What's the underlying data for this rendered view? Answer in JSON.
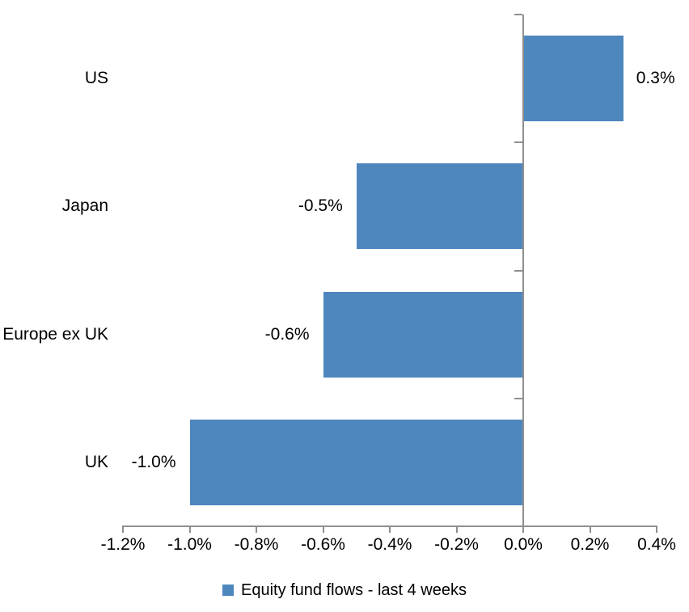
{
  "chart_data": {
    "type": "bar",
    "orientation": "horizontal",
    "title": "",
    "xlabel": "",
    "ylabel": "",
    "categories": [
      "US",
      "Japan",
      "Europe ex UK",
      "UK"
    ],
    "values": [
      0.3,
      -0.5,
      -0.6,
      -1.0
    ],
    "data_labels": [
      "0.3%",
      "-0.5%",
      "-0.6%",
      "-1.0%"
    ],
    "xlim": [
      -1.2,
      0.4
    ],
    "x_ticks": [
      -1.2,
      -1.0,
      -0.8,
      -0.6,
      -0.4,
      -0.2,
      0.0,
      0.2,
      0.4
    ],
    "x_tick_labels": [
      "-1.2%",
      "-1.0%",
      "-0.8%",
      "-0.6%",
      "-0.4%",
      "-0.2%",
      "0.0%",
      "0.2%",
      "0.4%"
    ],
    "grid": false,
    "legend_position": "bottom",
    "legend": [
      {
        "label": "Equity fund flows - last 4 weeks",
        "color": "#4E87BE"
      }
    ],
    "bar_color": "#4E87BE",
    "axis_color": "#8F8F8F",
    "text_color": "#000000",
    "background_color": "#FFFFFF"
  }
}
